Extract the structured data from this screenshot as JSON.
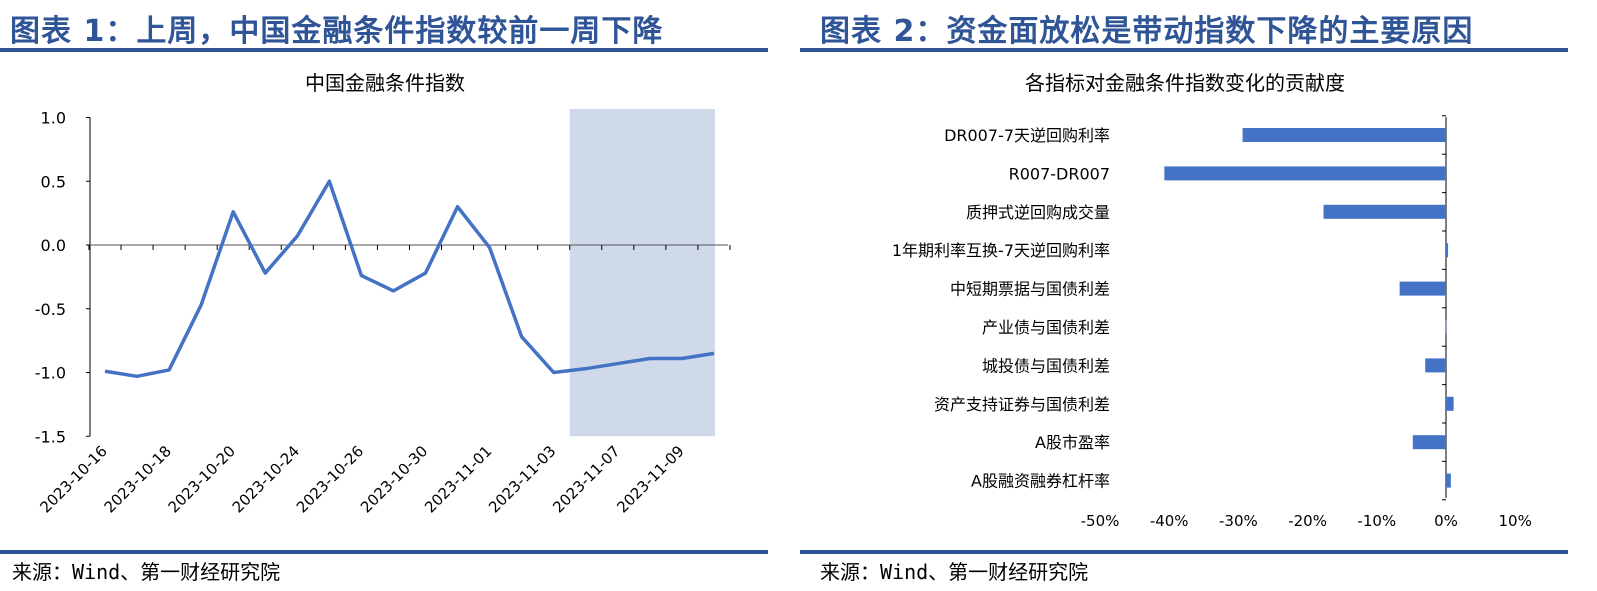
{
  "colors": {
    "title": "#2F5597",
    "rule": "#2F5496",
    "series": "#4472C4",
    "shade": "#CFD9EA"
  },
  "left": {
    "figure_title": "图表 1：上周，中国金融条件指数较前一周下降",
    "source": "来源：Wind、第一财经研究院"
  },
  "right": {
    "figure_title": "图表 2：资金面放松是带动指数下降的主要原因",
    "source": "来源：Wind、第一财经研究院"
  },
  "chart_data": [
    {
      "type": "line",
      "title": "中国金融条件指数",
      "x": [
        "2023-10-16",
        "2023-10-17",
        "2023-10-18",
        "2023-10-19",
        "2023-10-20",
        "2023-10-23",
        "2023-10-24",
        "2023-10-25",
        "2023-10-26",
        "2023-10-27",
        "2023-10-30",
        "2023-10-31",
        "2023-11-01",
        "2023-11-02",
        "2023-11-03",
        "2023-11-06",
        "2023-11-07",
        "2023-11-08",
        "2023-11-09",
        "2023-11-10"
      ],
      "x_tick_labels": [
        "2023-10-16",
        "2023-10-18",
        "2023-10-20",
        "2023-10-24",
        "2023-10-26",
        "2023-10-30",
        "2023-11-01",
        "2023-11-03",
        "2023-11-07",
        "2023-11-09"
      ],
      "values": [
        -0.99,
        -1.03,
        -0.98,
        -0.47,
        0.26,
        -0.22,
        0.07,
        0.5,
        -0.24,
        -0.36,
        -0.22,
        0.3,
        -0.02,
        -0.72,
        -1.0,
        -0.97,
        -0.93,
        -0.89,
        -0.89,
        -0.85
      ],
      "ylim": [
        -1.5,
        1.0
      ],
      "y_ticks": [
        "1.0",
        "0.5",
        "0.0",
        "-0.5",
        "-1.0",
        "-1.5"
      ],
      "y_tick_values": [
        1.0,
        0.5,
        0.0,
        -0.5,
        -1.0,
        -1.5
      ],
      "highlight_range": [
        "2023-11-06",
        "2023-11-10"
      ],
      "grid": false
    },
    {
      "type": "bar",
      "orientation": "horizontal",
      "title": "各指标对金融条件指数变化的贡献度",
      "categories": [
        "DR007-7天逆回购利率",
        "R007-DR007",
        "质押式逆回购成交量",
        "1年期利率互换-7天逆回购利率",
        "中短期票据与国债利差",
        "产业债与国债利差",
        "城投债与国债利差",
        "资产支持证券与国债利差",
        "A股市盈率",
        "A股融资融券杠杆率"
      ],
      "values": [
        -29.4,
        -40.7,
        -17.7,
        0.3,
        -6.7,
        -0.1,
        -3.0,
        1.1,
        -4.8,
        0.7
      ],
      "unit": "%",
      "xlim": [
        -50,
        10
      ],
      "x_ticks": [
        "-50%",
        "-40%",
        "-30%",
        "-20%",
        "-10%",
        "0%",
        "10%"
      ],
      "x_tick_values": [
        -50,
        -40,
        -30,
        -20,
        -10,
        0,
        10
      ],
      "grid": false
    }
  ]
}
